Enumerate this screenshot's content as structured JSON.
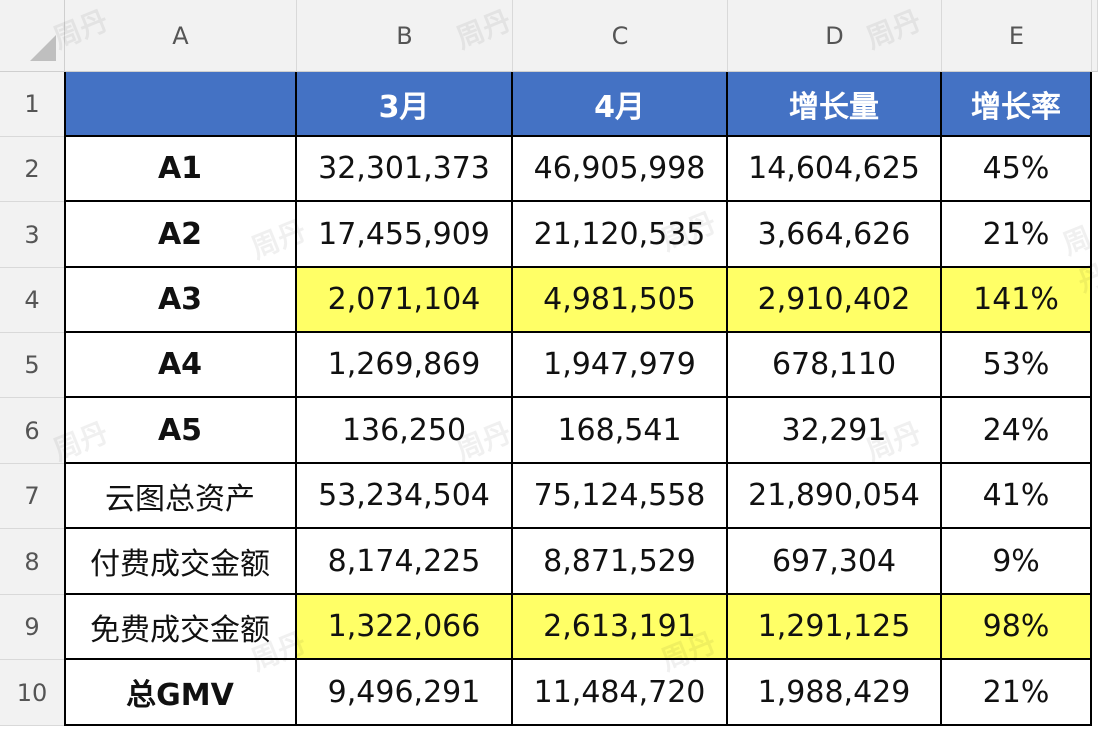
{
  "columns": [
    "A",
    "B",
    "C",
    "D",
    "E"
  ],
  "rows": [
    "1",
    "2",
    "3",
    "4",
    "5",
    "6",
    "7",
    "8",
    "9",
    "10"
  ],
  "header": [
    "",
    "3月",
    "4月",
    "增长量",
    "增长率"
  ],
  "table": [
    {
      "label": "A1",
      "m3": "32,301,373",
      "m4": "46,905,998",
      "growth": "14,604,625",
      "rate": "45%",
      "highlight": false,
      "bold": true
    },
    {
      "label": "A2",
      "m3": "17,455,909",
      "m4": "21,120,535",
      "growth": "3,664,626",
      "rate": "21%",
      "highlight": false,
      "bold": true
    },
    {
      "label": "A3",
      "m3": "2,071,104",
      "m4": "4,981,505",
      "growth": "2,910,402",
      "rate": "141%",
      "highlight": true,
      "bold": true
    },
    {
      "label": "A4",
      "m3": "1,269,869",
      "m4": "1,947,979",
      "growth": "678,110",
      "rate": "53%",
      "highlight": false,
      "bold": true
    },
    {
      "label": "A5",
      "m3": "136,250",
      "m4": "168,541",
      "growth": "32,291",
      "rate": "24%",
      "highlight": false,
      "bold": true
    },
    {
      "label": "云图总资产",
      "m3": "53,234,504",
      "m4": "75,124,558",
      "growth": "21,890,054",
      "rate": "41%",
      "highlight": false,
      "bold": false
    },
    {
      "label": "付费成交金额",
      "m3": "8,174,225",
      "m4": "8,871,529",
      "growth": "697,304",
      "rate": "9%",
      "highlight": false,
      "bold": false
    },
    {
      "label": "免费成交金额",
      "m3": "1,322,066",
      "m4": "2,613,191",
      "growth": "1,291,125",
      "rate": "98%",
      "highlight": true,
      "bold": false
    },
    {
      "label": "总GMV",
      "m3": "9,496,291",
      "m4": "11,484,720",
      "growth": "1,988,429",
      "rate": "21%",
      "highlight": false,
      "bold": true
    }
  ],
  "watermark": "周丹",
  "colors": {
    "header_bg": "#4472c4",
    "highlight": "#ffff66",
    "grid": "#000000",
    "chrome": "#f2f2f2"
  }
}
